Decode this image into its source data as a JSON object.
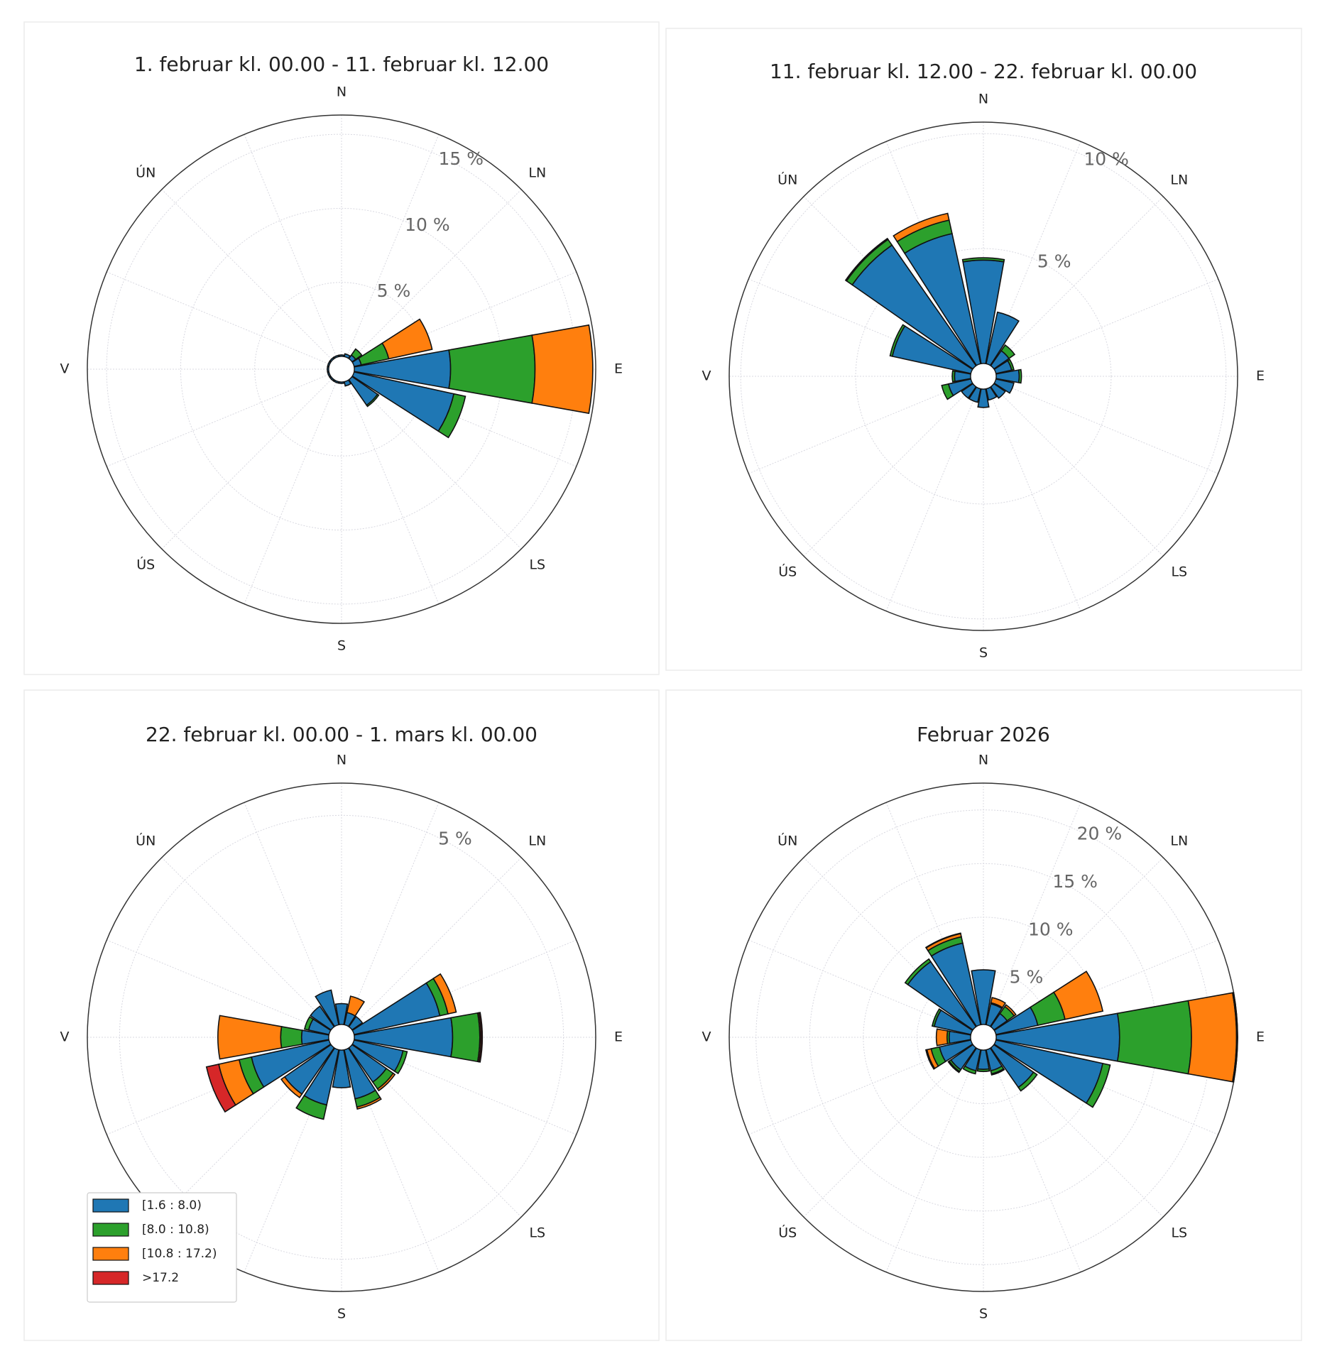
{
  "chart_data": [
    {
      "type": "windrose",
      "title": "1. februar kl. 00.00  -  11. februar kl. 12.00",
      "categories": [
        "N",
        null,
        "LN",
        null,
        "E",
        null,
        "LS",
        null,
        "S",
        null,
        "ÚS",
        null,
        "V",
        null,
        "ÚN",
        null
      ],
      "rlim": [
        0,
        16.3
      ],
      "rticks": [
        {
          "value": 5,
          "label": "5 %"
        },
        {
          "value": 10,
          "label": "10 %"
        },
        {
          "value": 15,
          "label": "15 %"
        }
      ],
      "series": [
        {
          "name": "[1.6 : 8.0)",
          "color": "#1f77b4",
          "values": [
            0.1,
            0.2,
            0.3,
            0.5,
            6.5,
            6.9,
            2.1,
            0.3,
            0.1,
            0.1,
            0.1,
            0.1,
            0.1,
            0.1,
            0.1,
            0.1
          ]
        },
        {
          "name": "[8.0 : 10.8)",
          "color": "#2ca02c",
          "values": [
            0,
            0,
            0.5,
            1.9,
            5.7,
            0.8,
            0.1,
            0,
            0,
            0,
            0,
            0,
            0,
            0,
            0,
            0
          ]
        },
        {
          "name": "[10.8 : 17.2)",
          "color": "#ff7f0e",
          "values": [
            0,
            0,
            0,
            3.0,
            3.9,
            0,
            0,
            0,
            0,
            0,
            0,
            0,
            0,
            0,
            0,
            0
          ]
        },
        {
          "name": ">17.2",
          "color": "#d62728",
          "values": [
            0,
            0,
            0,
            0,
            0,
            0,
            0,
            0,
            0,
            0,
            0,
            0,
            0,
            0,
            0,
            0
          ]
        }
      ]
    },
    {
      "type": "windrose",
      "title": "11. februar kl. 12.00  -  22. februar kl. 00.00",
      "categories": [
        "N",
        null,
        "LN",
        null,
        "E",
        null,
        "LS",
        null,
        "S",
        null,
        "ÚS",
        null,
        "V",
        null,
        "ÚN",
        null
      ],
      "rlim": [
        0,
        10.5
      ],
      "rticks": [
        {
          "value": 5,
          "label": "5 %"
        },
        {
          "value": 10,
          "label": "10 %"
        }
      ],
      "series": [
        {
          "name": "[1.6 : 8.0)",
          "color": "#1f77b4",
          "values": [
            4.5,
            2.3,
            0.8,
            0.7,
            1.0,
            0.8,
            0.6,
            0.5,
            0.8,
            0.6,
            0.6,
            1.0,
            0.7,
            3.5,
            6.4,
            5.8
          ]
        },
        {
          "name": "[8.0 : 10.8)",
          "color": "#2ca02c",
          "values": [
            0.1,
            0,
            0.3,
            0.1,
            0.1,
            0,
            0,
            0,
            0,
            0,
            0,
            0.3,
            0.1,
            0.1,
            0.3,
            0.6
          ]
        },
        {
          "name": "[10.8 : 17.2)",
          "color": "#ff7f0e",
          "values": [
            0,
            0,
            0,
            0,
            0,
            0,
            0,
            0,
            0,
            0,
            0,
            0,
            0,
            0,
            0.05,
            0.3
          ]
        },
        {
          "name": ">17.2",
          "color": "#d62728",
          "values": [
            0,
            0,
            0,
            0,
            0,
            0,
            0,
            0,
            0,
            0,
            0,
            0,
            0,
            0,
            0,
            0
          ]
        }
      ]
    },
    {
      "type": "windrose",
      "title": "22. februar kl. 00.00  -  1. mars kl. 00.00",
      "categories": [
        "N",
        null,
        "LN",
        null,
        "E",
        null,
        "LS",
        null,
        "S",
        null,
        "ÚS",
        null,
        "V",
        null,
        "ÚN",
        null
      ],
      "rlim": [
        0,
        5.77
      ],
      "rticks": [
        {
          "value": 5,
          "label": "5 %"
        }
      ],
      "legend": "lower left",
      "series": [
        {
          "name": "[1.6 : 8.0)",
          "color": "#1f77b4",
          "values": [
            0.5,
            0.3,
            0.3,
            2.1,
            2.35,
            1.2,
            1.0,
            1.2,
            0.9,
            1.35,
            1.35,
            1.9,
            0.65,
            0.5,
            0.6,
            0.85
          ]
        },
        {
          "name": "[8.0 : 10.8)",
          "color": "#2ca02c",
          "values": [
            0,
            0,
            0,
            0.2,
            0.65,
            0.1,
            0.2,
            0.2,
            0,
            0.35,
            0,
            0.3,
            0.5,
            0.1,
            0,
            0
          ]
        },
        {
          "name": "[10.8 : 17.2)",
          "color": "#ff7f0e",
          "values": [
            0,
            0.4,
            0,
            0.2,
            0.03,
            0,
            0.05,
            0.05,
            0,
            0,
            0.1,
            0.5,
            1.5,
            0,
            0,
            0
          ]
        },
        {
          "name": ">17.2",
          "color": "#d62728",
          "values": [
            0,
            0,
            0,
            0,
            0.03,
            0,
            0,
            0,
            0,
            0,
            0,
            0.3,
            0,
            0,
            0,
            0
          ]
        }
      ]
    },
    {
      "type": "windrose",
      "title": "Februar 2026",
      "categories": [
        "N",
        null,
        "LN",
        null,
        "E",
        null,
        "LS",
        null,
        "S",
        null,
        "ÚS",
        null,
        "V",
        null,
        "ÚN",
        null
      ],
      "rlim": [
        0,
        22.5
      ],
      "rticks": [
        {
          "value": 5,
          "label": "5 %"
        },
        {
          "value": 10,
          "label": "10 %"
        },
        {
          "value": 15,
          "label": "15 %"
        },
        {
          "value": 20,
          "label": "20 %"
        }
      ],
      "series": [
        {
          "name": "[1.6 : 8.0)",
          "color": "#1f77b4",
          "values": [
            5.1,
            2.0,
            1.5,
            4.0,
            11.5,
            10.2,
            4.5,
            2.0,
            1.8,
            2.0,
            2.5,
            3.0,
            2.0,
            3.5,
            7.4,
            7.8
          ]
        },
        {
          "name": "[8.0 : 10.8)",
          "color": "#2ca02c",
          "values": [
            0,
            0.1,
            0.8,
            2.6,
            6.7,
            0.7,
            0.4,
            0.3,
            0.2,
            0.3,
            0.2,
            0.8,
            0.2,
            0.2,
            0.3,
            0.6
          ]
        },
        {
          "name": "[10.8 : 17.2)",
          "color": "#ff7f0e",
          "values": [
            0,
            0.5,
            0.2,
            3.6,
            4.2,
            0,
            0,
            0.1,
            0,
            0,
            0.1,
            0.4,
            1.0,
            0,
            0,
            0.3
          ]
        },
        {
          "name": ">17.2",
          "color": "#d62728",
          "values": [
            0,
            0,
            0,
            0,
            0.1,
            0,
            0,
            0,
            0,
            0,
            0,
            0.1,
            0,
            0,
            0,
            0.05
          ]
        }
      ]
    }
  ]
}
